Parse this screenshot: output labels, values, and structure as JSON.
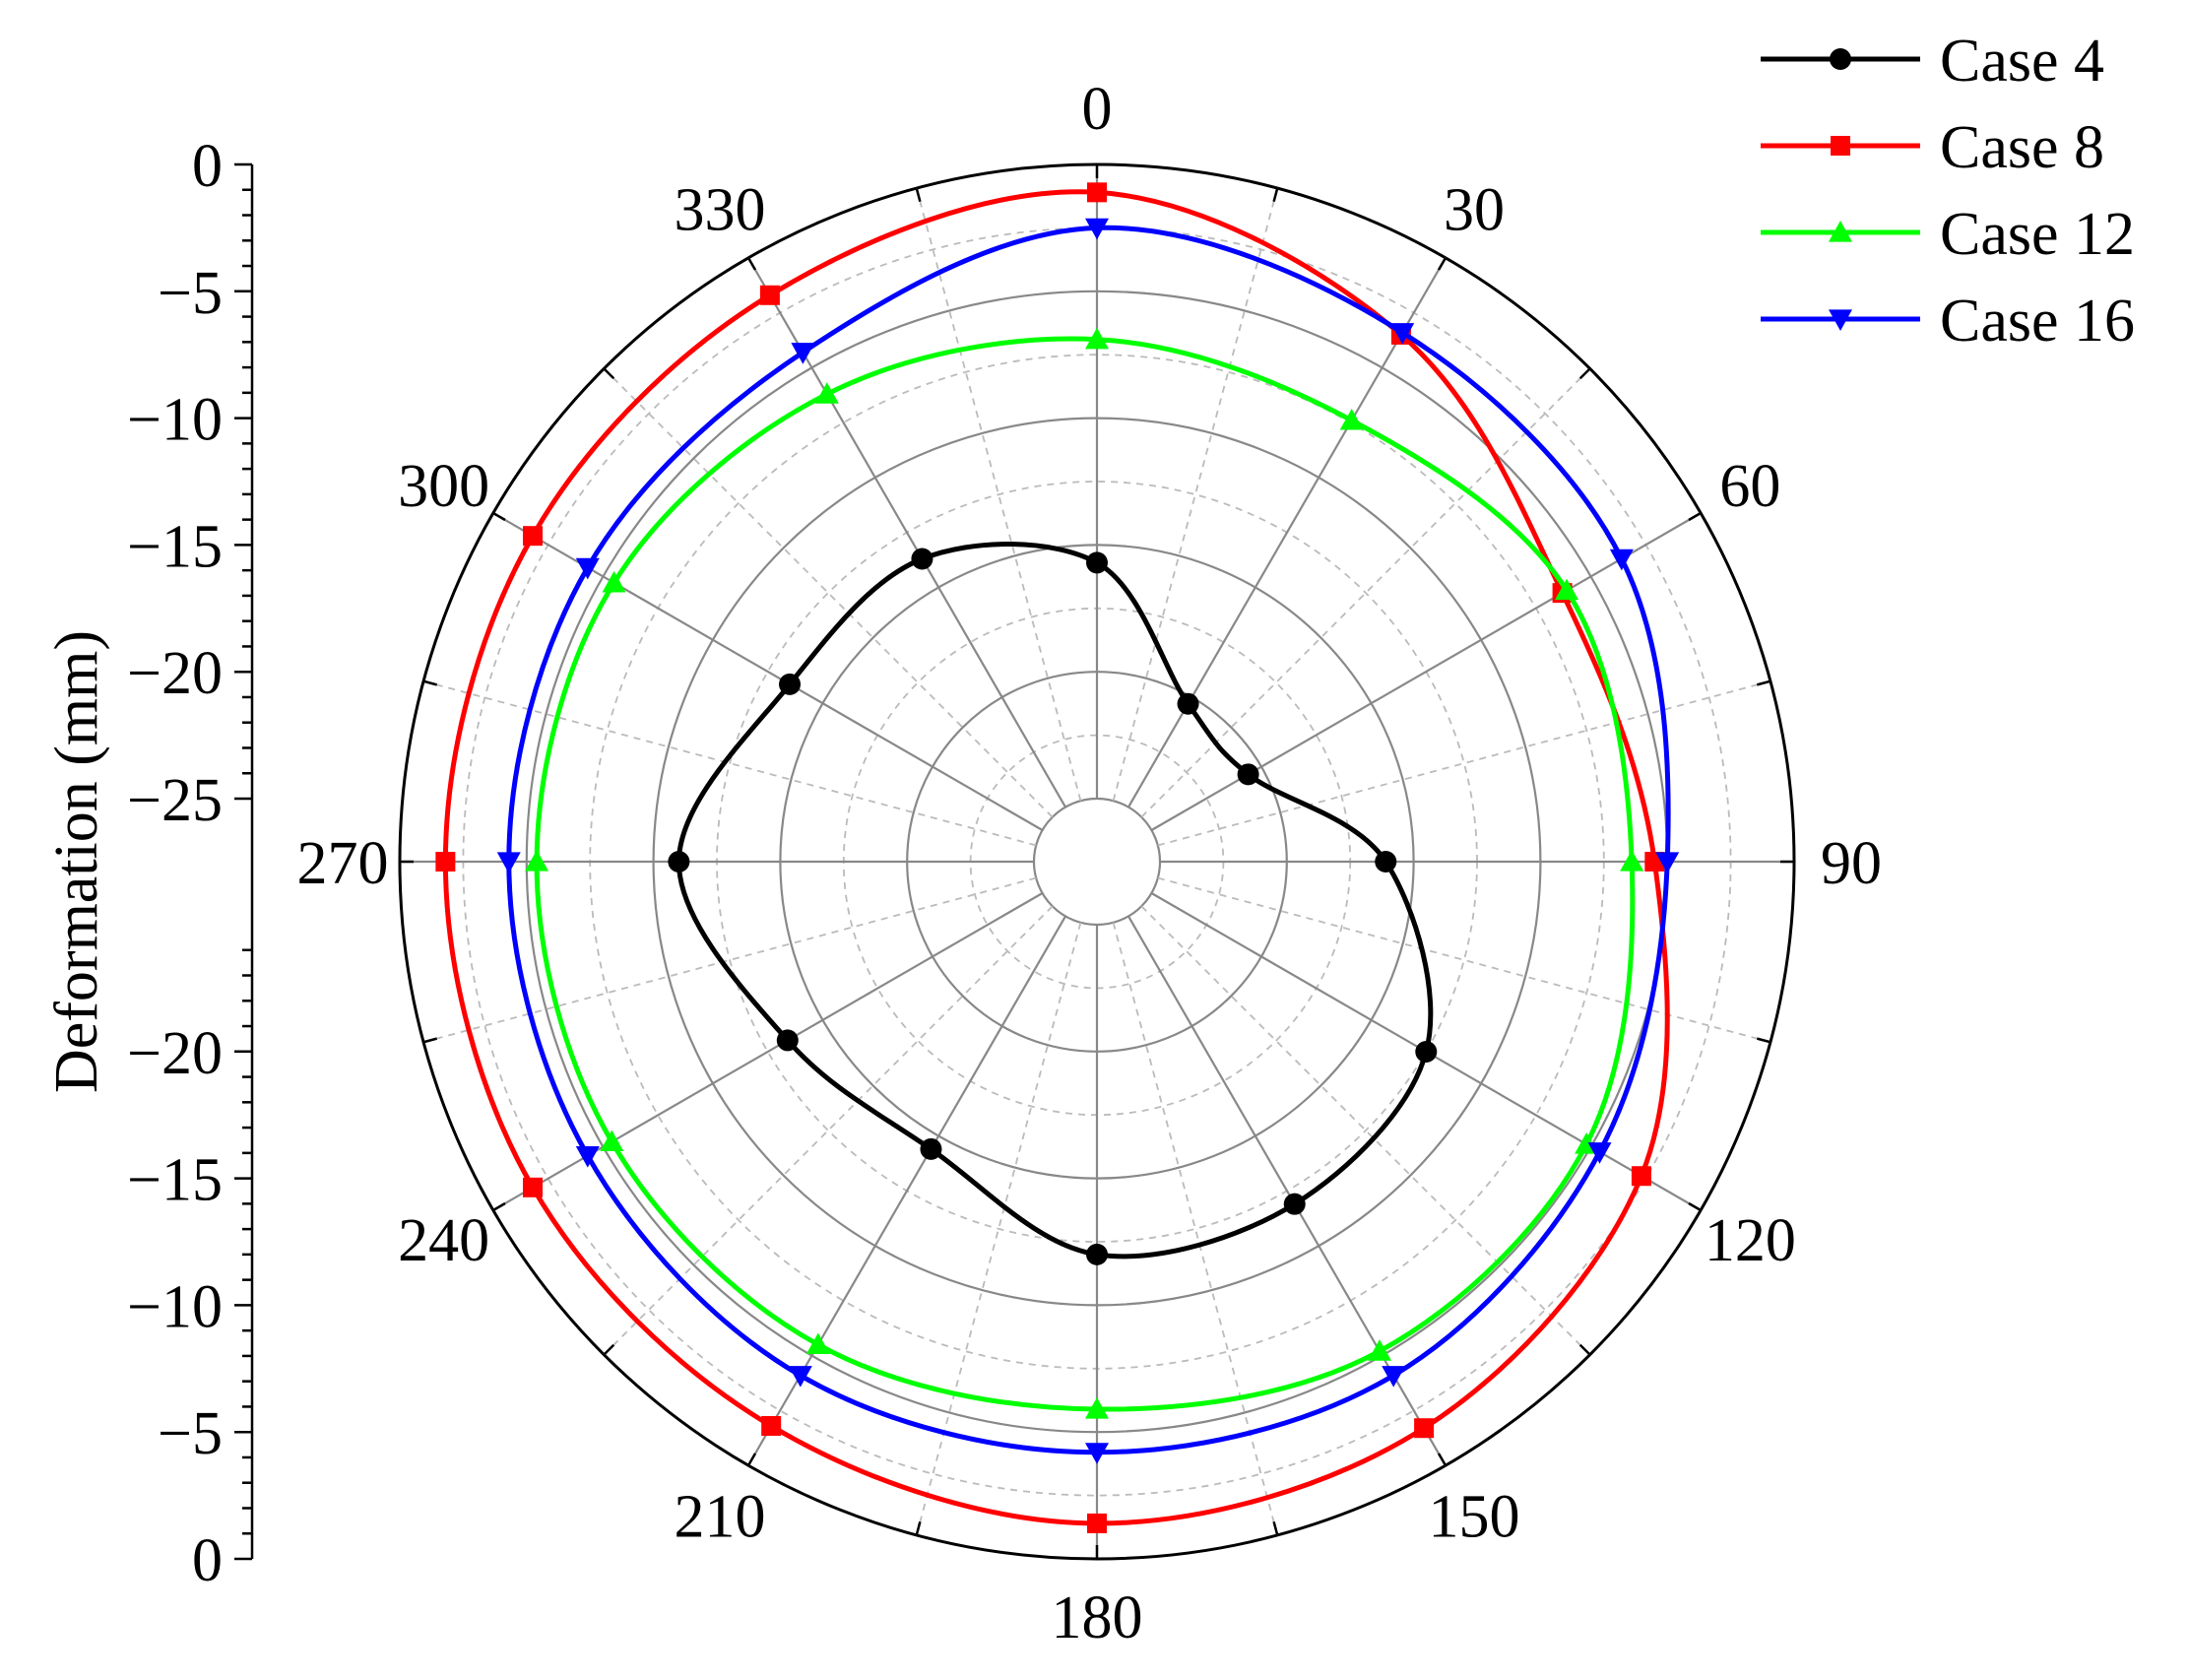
{
  "chart_data": {
    "type": "polar-line",
    "ylabel": "Deformation (mm)",
    "r_axis": {
      "min": -25,
      "max": 0,
      "major_step": 5,
      "tick_labels_upper": [
        "0",
        "−5",
        "−10",
        "−15",
        "−20",
        "−25"
      ],
      "tick_labels_lower": [
        "−20",
        "−15",
        "−10",
        "−5",
        "0"
      ]
    },
    "angle_axis": {
      "direction": "clockwise",
      "zero_location": "top",
      "step": 30,
      "labels": [
        "0",
        "30",
        "60",
        "90",
        "120",
        "150",
        "180",
        "210",
        "240",
        "270",
        "300",
        "330"
      ]
    },
    "grid": true,
    "legend": {
      "position": "top-right"
    },
    "series": [
      {
        "name": "Case 4",
        "color": "#000000",
        "marker": "circle",
        "theta": [
          0,
          30,
          60,
          90,
          120,
          150,
          180,
          210,
          240,
          270,
          300,
          330
        ],
        "r": [
          -15.7,
          -20.3,
          -20.6,
          -16.1,
          -12.5,
          -11.9,
          -12.0,
          -14.4,
          -13.4,
          -11.0,
          -13.5,
          -13.7
        ]
      },
      {
        "name": "Case 8",
        "color": "#ff0000",
        "marker": "square",
        "theta": [
          0,
          30,
          60,
          90,
          120,
          150,
          180,
          210,
          240,
          270,
          300,
          330
        ],
        "r": [
          -1.1,
          -3.5,
          -6.3,
          -5.5,
          -2.7,
          -1.7,
          -1.4,
          -1.8,
          -1.8,
          -1.8,
          -1.8,
          -1.7
        ]
      },
      {
        "name": "Case 12",
        "color": "#00ff00",
        "marker": "triangle-up",
        "theta": [
          0,
          30,
          60,
          90,
          120,
          150,
          180,
          210,
          240,
          270,
          300,
          330
        ],
        "r": [
          -6.9,
          -7.4,
          -6.1,
          -6.4,
          -5.2,
          -5.2,
          -5.9,
          -5.5,
          -5.4,
          -5.4,
          -5.5,
          -6.2
        ]
      },
      {
        "name": "Case 16",
        "color": "#0000ff",
        "marker": "triangle-down",
        "theta": [
          0,
          30,
          60,
          90,
          120,
          150,
          180,
          210,
          240,
          270,
          300,
          330
        ],
        "r": [
          -2.5,
          -3.4,
          -3.6,
          -5.0,
          -4.6,
          -4.1,
          -4.2,
          -4.1,
          -4.3,
          -4.3,
          -4.3,
          -4.3
        ]
      }
    ]
  }
}
